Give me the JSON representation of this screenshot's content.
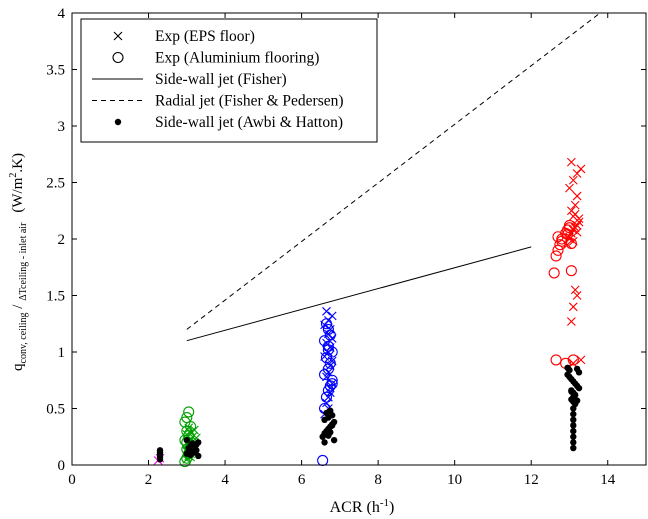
{
  "chart_data": {
    "type": "scatter",
    "xlabel": {
      "text": "ACR (h",
      "sup": "-1",
      "close": ")"
    },
    "ylabel": {
      "q": "q",
      "q_sub": "conv, ceiling",
      "slash": " / ",
      "dt": "ΔT",
      "dt_sub": "ceiling - inlet air",
      "units_pre": "(W/m",
      "units_sup": "2",
      "units_post": ".K)"
    },
    "xlim": [
      0,
      15
    ],
    "ylim": [
      0,
      4
    ],
    "xticks": [
      0,
      2,
      4,
      6,
      8,
      10,
      12,
      14
    ],
    "yticks": [
      0,
      0.5,
      1,
      1.5,
      2,
      2.5,
      3,
      3.5,
      4
    ],
    "grid": false,
    "legend_position": "top-left",
    "legend": [
      {
        "marker": "x",
        "label": "Exp (EPS floor)"
      },
      {
        "marker": "circle",
        "label": "Exp (Aluminium flooring)"
      },
      {
        "marker": "solid-line",
        "label": "Side-wall jet (Fisher)"
      },
      {
        "marker": "dashed-line",
        "label": "Radial jet (Fisher & Pedersen)"
      },
      {
        "marker": "dot",
        "label": "Side-wall jet (Awbi & Hatton)"
      }
    ],
    "colors": {
      "acr_2": "#ff00ff",
      "acr_3": "#00a000",
      "acr_6": "#0000ff",
      "acr_12": "#ff0000",
      "awbi": "#000000",
      "lines": "#000000"
    },
    "lines": [
      {
        "name": "Side-wall jet (Fisher)",
        "style": "solid",
        "x": [
          3,
          12
        ],
        "y": [
          1.1,
          1.93
        ]
      },
      {
        "name": "Radial jet (Fisher & Pedersen)",
        "style": "dashed",
        "x": [
          3,
          13.8
        ],
        "y": [
          1.2,
          4.0
        ]
      }
    ],
    "series": [
      {
        "name": "Exp (EPS floor)",
        "marker": "x",
        "groups": [
          {
            "color": "#ff00ff",
            "x": [
              2.25,
              2.3
            ],
            "y": [
              0.04,
              0.06
            ]
          },
          {
            "color": "#00a000",
            "x": [
              3.0,
              3.05,
              3.1,
              3.0,
              3.15,
              3.05,
              3.2,
              3.1,
              3.25,
              3.0,
              3.1,
              3.2,
              3.05,
              3.15,
              3.0,
              3.1
            ],
            "y": [
              0.05,
              0.08,
              0.1,
              0.13,
              0.15,
              0.18,
              0.2,
              0.22,
              0.24,
              0.27,
              0.29,
              0.31,
              0.33,
              0.25,
              0.12,
              0.07
            ]
          },
          {
            "color": "#0000ff",
            "x": [
              6.6,
              6.65,
              6.7,
              6.75,
              6.8,
              6.65,
              6.7,
              6.75,
              6.8,
              6.6,
              6.7,
              6.75,
              6.65,
              6.8,
              6.7,
              6.75,
              6.6,
              6.7,
              6.8,
              6.65,
              6.75,
              6.7
            ],
            "y": [
              0.45,
              0.55,
              0.6,
              0.68,
              0.72,
              0.78,
              0.82,
              0.88,
              0.92,
              0.96,
              1.0,
              1.04,
              1.08,
              1.12,
              1.16,
              1.2,
              1.24,
              1.28,
              1.32,
              1.36,
              0.64,
              0.5
            ]
          },
          {
            "color": "#ff0000",
            "x": [
              12.95,
              13.0,
              13.05,
              13.1,
              13.15,
              13.2,
              13.25,
              13.1,
              13.05,
              13.15,
              13.2,
              13.0,
              13.1,
              13.2,
              13.3,
              13.05,
              13.15,
              13.1,
              13.0,
              13.25,
              13.2,
              13.1,
              13.05,
              13.15,
              13.3,
              13.1,
              13.2
            ],
            "y": [
              1.95,
              2.0,
              2.05,
              2.08,
              2.1,
              2.12,
              2.15,
              2.2,
              2.25,
              2.3,
              2.38,
              2.45,
              2.52,
              2.58,
              2.62,
              2.68,
              2.22,
              1.98,
              2.02,
              2.18,
              1.5,
              1.4,
              1.27,
              1.55,
              0.93,
              0.9,
              2.06
            ]
          }
        ]
      },
      {
        "name": "Exp (Aluminium flooring)",
        "marker": "circle",
        "groups": [
          {
            "color": "#00a000",
            "x": [
              2.95,
              3.0,
              3.05,
              3.0,
              3.1,
              2.95,
              3.05,
              3.0,
              3.1,
              2.95,
              3.0,
              3.05,
              3.0
            ],
            "y": [
              0.03,
              0.06,
              0.1,
              0.14,
              0.18,
              0.22,
              0.26,
              0.3,
              0.34,
              0.38,
              0.42,
              0.47,
              0.2
            ]
          },
          {
            "color": "#0000ff",
            "x": [
              6.55,
              6.6,
              6.65,
              6.7,
              6.75,
              6.8,
              6.6,
              6.7,
              6.75,
              6.65,
              6.8,
              6.7,
              6.6,
              6.75,
              6.7,
              6.65,
              6.8,
              6.7
            ],
            "y": [
              0.04,
              0.5,
              0.6,
              0.66,
              0.7,
              0.75,
              0.8,
              0.85,
              0.9,
              0.95,
              1.0,
              1.05,
              1.1,
              1.15,
              1.2,
              1.25,
              0.72,
              1.02
            ]
          },
          {
            "color": "#ff0000",
            "x": [
              12.6,
              12.65,
              12.7,
              12.75,
              12.8,
              12.9,
              12.95,
              13.0,
              13.05,
              13.1,
              12.7,
              12.8,
              12.65,
              12.9,
              13.0,
              13.05,
              12.95
            ],
            "y": [
              1.7,
              1.85,
              1.9,
              1.95,
              2.0,
              2.05,
              2.08,
              2.1,
              1.72,
              0.93,
              2.02,
              1.98,
              0.93,
              0.9,
              2.12,
              1.96,
              2.04
            ]
          }
        ]
      },
      {
        "name": "Side-wall jet (Awbi & Hatton)",
        "marker": "dot",
        "groups": [
          {
            "color": "#000000",
            "x": [
              2.3,
              2.3,
              2.3,
              2.3,
              2.3
            ],
            "y": [
              0.05,
              0.07,
              0.09,
              0.11,
              0.13
            ],
            "label": "acr-2"
          },
          {
            "color": "#000000",
            "x": [
              3.0,
              3.05,
              3.1,
              3.2,
              3.25,
              3.3,
              3.0,
              3.1,
              3.2,
              3.05,
              3.15,
              3.25,
              3.3,
              3.1
            ],
            "y": [
              0.1,
              0.12,
              0.14,
              0.16,
              0.18,
              0.2,
              0.22,
              0.09,
              0.11,
              0.15,
              0.19,
              0.13,
              0.08,
              0.17
            ],
            "label": "acr-3"
          },
          {
            "color": "#000000",
            "x": [
              6.55,
              6.6,
              6.65,
              6.7,
              6.75,
              6.8,
              6.85,
              6.6,
              6.7,
              6.8,
              6.65,
              6.75,
              6.7,
              6.85,
              6.6,
              6.8,
              6.7,
              6.75
            ],
            "y": [
              0.25,
              0.28,
              0.3,
              0.32,
              0.34,
              0.36,
              0.38,
              0.4,
              0.42,
              0.44,
              0.46,
              0.48,
              0.26,
              0.22,
              0.2,
              0.35,
              0.31,
              0.29
            ],
            "label": "acr-6"
          },
          {
            "color": "#000000",
            "x": [
              12.95,
              13.0,
              13.05,
              13.1,
              13.15,
              13.2,
              13.25,
              13.05,
              13.1,
              13.15,
              13.1,
              13.05,
              13.1,
              13.15,
              13.1,
              13.1,
              13.1,
              13.1,
              13.1,
              13.1,
              13.1,
              13.1,
              13.2,
              13.25,
              13.0,
              12.95,
              13.15,
              13.2,
              13.05
            ],
            "y": [
              0.8,
              0.78,
              0.76,
              0.74,
              0.72,
              0.7,
              0.68,
              0.66,
              0.64,
              0.62,
              0.6,
              0.58,
              0.56,
              0.54,
              0.5,
              0.45,
              0.4,
              0.35,
              0.3,
              0.25,
              0.2,
              0.15,
              0.85,
              0.82,
              0.84,
              0.86,
              0.55,
              0.57,
              0.65
            ],
            "label": "acr-12"
          }
        ]
      }
    ]
  }
}
